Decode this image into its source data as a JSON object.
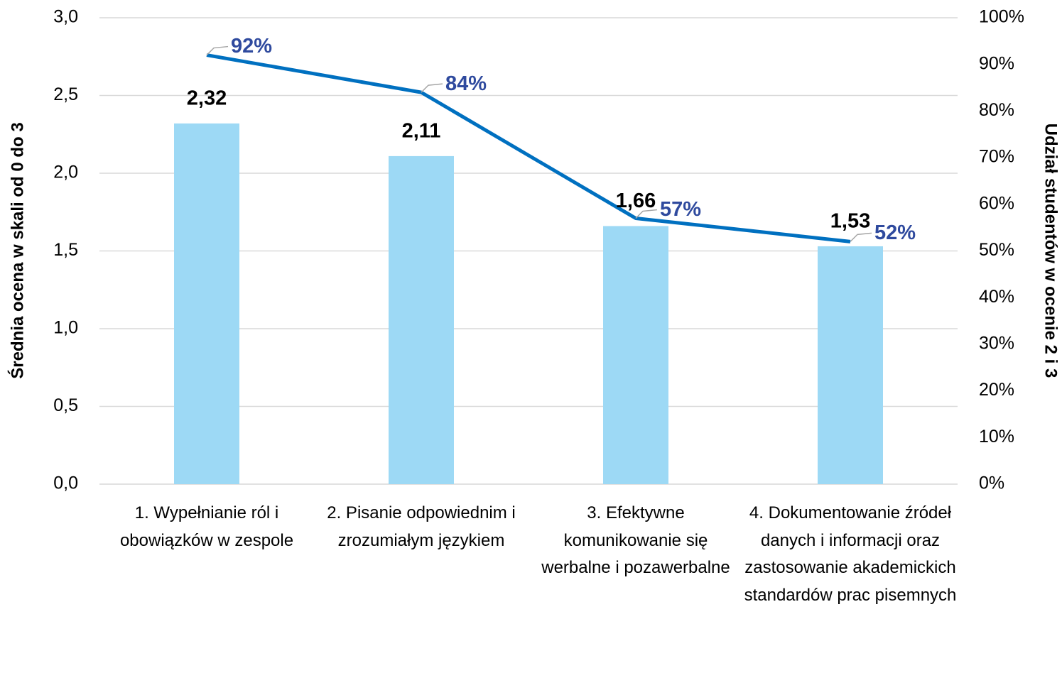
{
  "chart_data": {
    "type": "bar_line",
    "categories": [
      "1. Wypełnianie ról i obowiązków w zespole",
      "2. Pisanie odpowiednim i zrozumiałym językiem",
      "3. Efektywne komunikowanie się werbalne i pozawerbalne",
      "4. Dokumentowanie źródeł danych i informacji oraz zastosowanie akademickich standardów prac pisemnych"
    ],
    "series": [
      {
        "type": "bar",
        "color": "#9dd9f5",
        "label_color": "#000000",
        "values": [
          2.32,
          2.11,
          1.66,
          1.53
        ],
        "value_labels": [
          "2,32",
          "2,11",
          "1,66",
          "1,53"
        ]
      },
      {
        "type": "line",
        "axis": "y2",
        "color": "#0070c0",
        "label_color": "#2f4a9e",
        "values": [
          92,
          84,
          57,
          52
        ],
        "value_labels": [
          "92%",
          "84%",
          "57%",
          "52%"
        ]
      }
    ],
    "ylabel": "Średnia ocena w skali od 0 do 3",
    "y2label": "Udział studentów w ocenie 2 i 3",
    "ylim": [
      0,
      3
    ],
    "yticks": [
      {
        "value": 0,
        "label": "0,0"
      },
      {
        "value": 0.5,
        "label": "0,5"
      },
      {
        "value": 1,
        "label": "1,0"
      },
      {
        "value": 1.5,
        "label": "1,5"
      },
      {
        "value": 2,
        "label": "2,0"
      },
      {
        "value": 2.5,
        "label": "2,5"
      },
      {
        "value": 3,
        "label": "3,0"
      }
    ],
    "y2lim": [
      0,
      100
    ],
    "y2ticks": [
      {
        "value": 0,
        "label": "0%"
      },
      {
        "value": 10,
        "label": "10%"
      },
      {
        "value": 20,
        "label": "20%"
      },
      {
        "value": 30,
        "label": "30%"
      },
      {
        "value": 40,
        "label": "40%"
      },
      {
        "value": 50,
        "label": "50%"
      },
      {
        "value": 60,
        "label": "60%"
      },
      {
        "value": 70,
        "label": "70%"
      },
      {
        "value": 80,
        "label": "80%"
      },
      {
        "value": 90,
        "label": "90%"
      },
      {
        "value": 100,
        "label": "100%"
      }
    ],
    "grid": true
  }
}
